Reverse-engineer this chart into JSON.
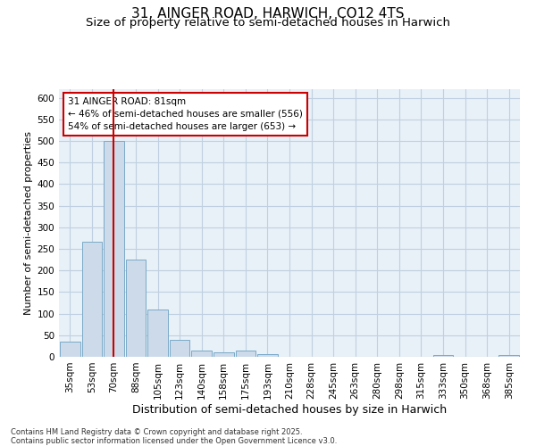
{
  "title1": "31, AINGER ROAD, HARWICH, CO12 4TS",
  "title2": "Size of property relative to semi-detached houses in Harwich",
  "xlabel": "Distribution of semi-detached houses by size in Harwich",
  "ylabel": "Number of semi-detached properties",
  "bar_labels": [
    "35sqm",
    "53sqm",
    "70sqm",
    "88sqm",
    "105sqm",
    "123sqm",
    "140sqm",
    "158sqm",
    "175sqm",
    "193sqm",
    "210sqm",
    "228sqm",
    "245sqm",
    "263sqm",
    "280sqm",
    "298sqm",
    "315sqm",
    "333sqm",
    "350sqm",
    "368sqm",
    "385sqm"
  ],
  "bar_values": [
    35,
    267,
    500,
    225,
    110,
    40,
    15,
    10,
    15,
    7,
    0,
    0,
    0,
    0,
    0,
    0,
    0,
    4,
    0,
    0,
    5
  ],
  "bar_color": "#ccdaea",
  "bar_edge_color": "#7aaac8",
  "highlight_bar_index": 2,
  "highlight_color": "#cc0000",
  "annotation_text": "31 AINGER ROAD: 81sqm\n← 46% of semi-detached houses are smaller (556)\n54% of semi-detached houses are larger (653) →",
  "annotation_edge_color": "#cc0000",
  "ylim": [
    0,
    620
  ],
  "yticks": [
    0,
    50,
    100,
    150,
    200,
    250,
    300,
    350,
    400,
    450,
    500,
    550,
    600
  ],
  "grid_color": "#c0d0e0",
  "bg_color": "#e8f0f8",
  "footer_text": "Contains HM Land Registry data © Crown copyright and database right 2025.\nContains public sector information licensed under the Open Government Licence v3.0.",
  "title1_fontsize": 11,
  "title2_fontsize": 9.5,
  "xlabel_fontsize": 9,
  "ylabel_fontsize": 8,
  "tick_fontsize": 7.5,
  "annotation_fontsize": 7.5
}
